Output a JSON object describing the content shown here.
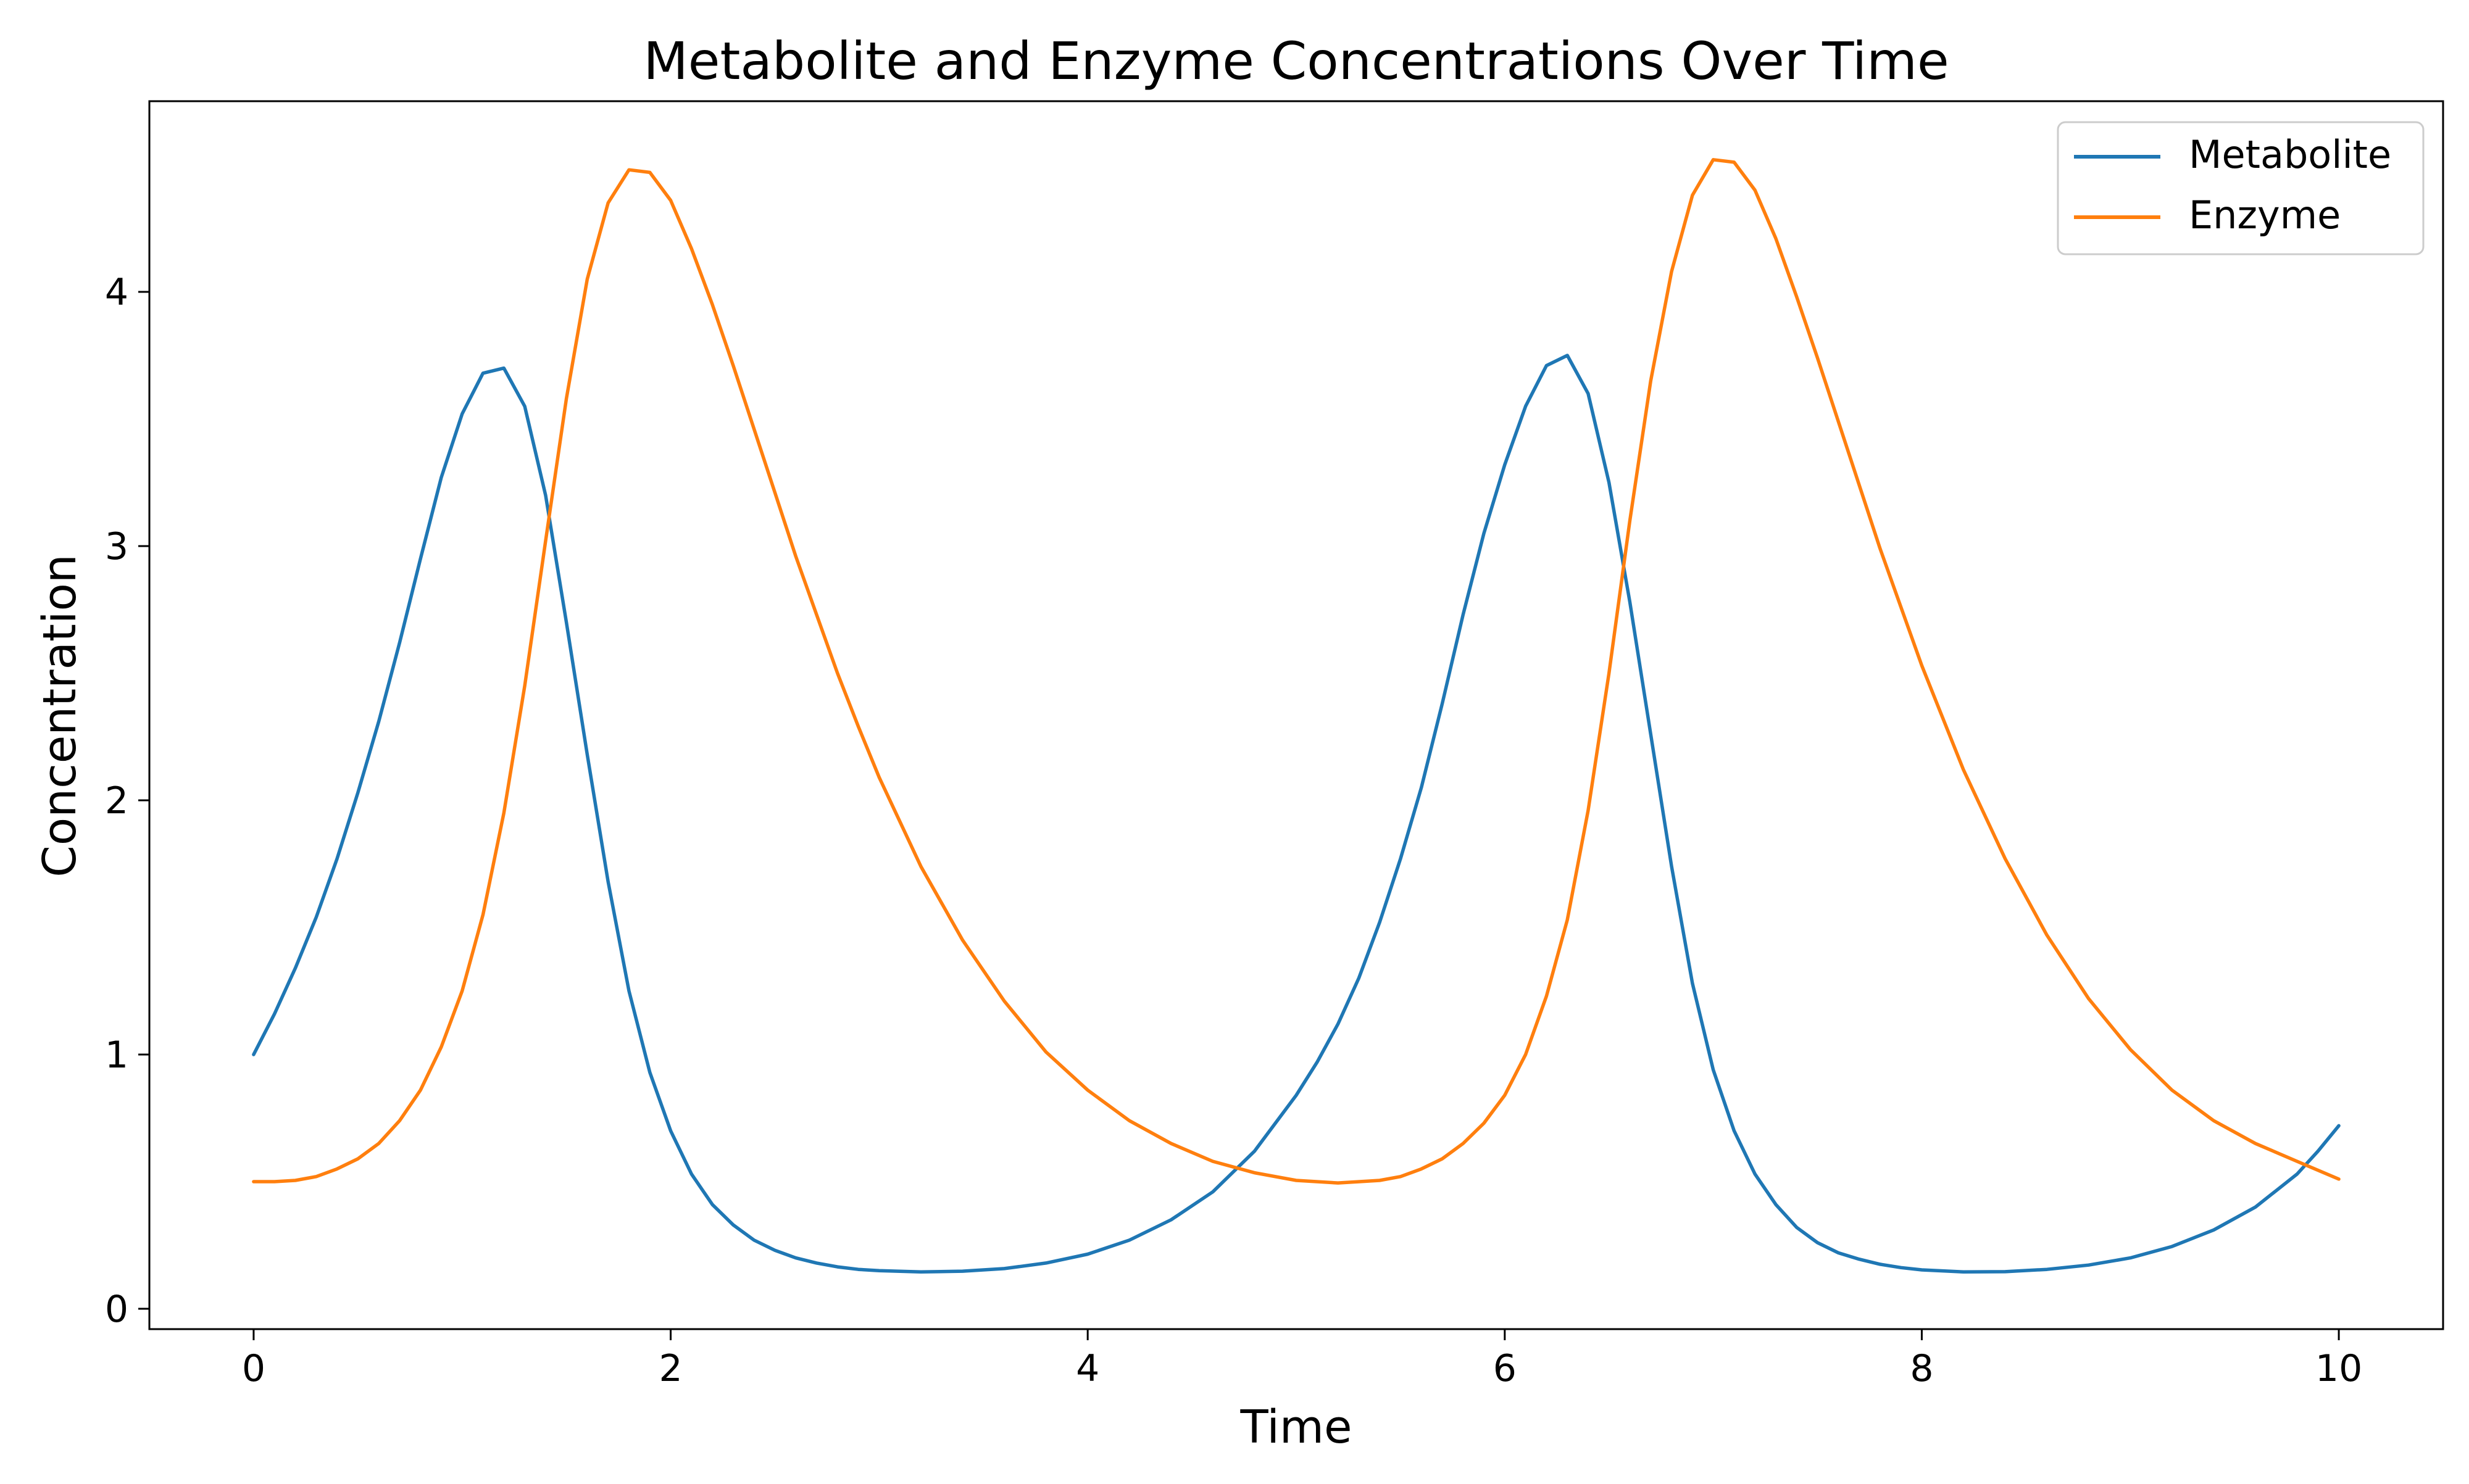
{
  "chart_data": {
    "type": "line",
    "title": "Metabolite and Enzyme Concentrations Over Time",
    "xlabel": "Time",
    "ylabel": "Concentration",
    "xlim": [
      -0.5,
      10.5
    ],
    "ylim": [
      -0.08,
      4.75
    ],
    "grid": false,
    "legend_position": "top-right",
    "x_ticks": [
      0,
      2,
      4,
      6,
      8,
      10
    ],
    "y_ticks": [
      0,
      1,
      2,
      3,
      4
    ],
    "series": [
      {
        "name": "Metabolite",
        "color": "#1f77b4",
        "points": [
          [
            0,
            1.0
          ],
          [
            0.1,
            1.16
          ],
          [
            0.2,
            1.34
          ],
          [
            0.3,
            1.54
          ],
          [
            0.4,
            1.77
          ],
          [
            0.5,
            2.03
          ],
          [
            0.6,
            2.31
          ],
          [
            0.7,
            2.62
          ],
          [
            0.8,
            2.95
          ],
          [
            0.9,
            3.27
          ],
          [
            1.0,
            3.52
          ],
          [
            1.1,
            3.68
          ],
          [
            1.2,
            3.7
          ],
          [
            1.3,
            3.55
          ],
          [
            1.4,
            3.2
          ],
          [
            1.5,
            2.7
          ],
          [
            1.6,
            2.18
          ],
          [
            1.7,
            1.68
          ],
          [
            1.8,
            1.25
          ],
          [
            1.9,
            0.93
          ],
          [
            2.0,
            0.7
          ],
          [
            2.1,
            0.53
          ],
          [
            2.2,
            0.41
          ],
          [
            2.3,
            0.33
          ],
          [
            2.4,
            0.27
          ],
          [
            2.5,
            0.23
          ],
          [
            2.6,
            0.2
          ],
          [
            2.7,
            0.18
          ],
          [
            2.8,
            0.165
          ],
          [
            2.9,
            0.155
          ],
          [
            3.0,
            0.15
          ],
          [
            3.2,
            0.145
          ],
          [
            3.4,
            0.148
          ],
          [
            3.6,
            0.158
          ],
          [
            3.8,
            0.18
          ],
          [
            4.0,
            0.215
          ],
          [
            4.2,
            0.27
          ],
          [
            4.4,
            0.35
          ],
          [
            4.6,
            0.46
          ],
          [
            4.8,
            0.62
          ],
          [
            5.0,
            0.84
          ],
          [
            5.1,
            0.97
          ],
          [
            5.2,
            1.12
          ],
          [
            5.3,
            1.3
          ],
          [
            5.4,
            1.52
          ],
          [
            5.5,
            1.77
          ],
          [
            5.6,
            2.05
          ],
          [
            5.7,
            2.38
          ],
          [
            5.8,
            2.73
          ],
          [
            5.9,
            3.05
          ],
          [
            6.0,
            3.32
          ],
          [
            6.1,
            3.55
          ],
          [
            6.2,
            3.71
          ],
          [
            6.3,
            3.75
          ],
          [
            6.4,
            3.6
          ],
          [
            6.5,
            3.25
          ],
          [
            6.6,
            2.78
          ],
          [
            6.7,
            2.26
          ],
          [
            6.8,
            1.74
          ],
          [
            6.9,
            1.28
          ],
          [
            7.0,
            0.94
          ],
          [
            7.1,
            0.7
          ],
          [
            7.2,
            0.53
          ],
          [
            7.3,
            0.41
          ],
          [
            7.4,
            0.32
          ],
          [
            7.5,
            0.26
          ],
          [
            7.6,
            0.22
          ],
          [
            7.7,
            0.195
          ],
          [
            7.8,
            0.175
          ],
          [
            7.9,
            0.162
          ],
          [
            8.0,
            0.153
          ],
          [
            8.2,
            0.145
          ],
          [
            8.4,
            0.146
          ],
          [
            8.6,
            0.155
          ],
          [
            8.8,
            0.172
          ],
          [
            9.0,
            0.2
          ],
          [
            9.2,
            0.245
          ],
          [
            9.4,
            0.31
          ],
          [
            9.6,
            0.4
          ],
          [
            9.8,
            0.53
          ],
          [
            9.9,
            0.62
          ],
          [
            10.0,
            0.72
          ]
        ]
      },
      {
        "name": "Enzyme",
        "color": "#ff7f0e",
        "points": [
          [
            0,
            0.5
          ],
          [
            0.1,
            0.5
          ],
          [
            0.2,
            0.505
          ],
          [
            0.3,
            0.52
          ],
          [
            0.4,
            0.55
          ],
          [
            0.5,
            0.59
          ],
          [
            0.6,
            0.65
          ],
          [
            0.7,
            0.74
          ],
          [
            0.8,
            0.86
          ],
          [
            0.9,
            1.03
          ],
          [
            1.0,
            1.25
          ],
          [
            1.1,
            1.55
          ],
          [
            1.2,
            1.95
          ],
          [
            1.3,
            2.45
          ],
          [
            1.4,
            3.02
          ],
          [
            1.5,
            3.58
          ],
          [
            1.6,
            4.05
          ],
          [
            1.7,
            4.35
          ],
          [
            1.8,
            4.48
          ],
          [
            1.9,
            4.47
          ],
          [
            2.0,
            4.36
          ],
          [
            2.1,
            4.17
          ],
          [
            2.2,
            3.95
          ],
          [
            2.3,
            3.71
          ],
          [
            2.4,
            3.46
          ],
          [
            2.5,
            3.21
          ],
          [
            2.6,
            2.96
          ],
          [
            2.7,
            2.73
          ],
          [
            2.8,
            2.5
          ],
          [
            2.9,
            2.29
          ],
          [
            3.0,
            2.09
          ],
          [
            3.2,
            1.74
          ],
          [
            3.4,
            1.45
          ],
          [
            3.6,
            1.21
          ],
          [
            3.8,
            1.01
          ],
          [
            4.0,
            0.86
          ],
          [
            4.2,
            0.74
          ],
          [
            4.4,
            0.65
          ],
          [
            4.6,
            0.58
          ],
          [
            4.8,
            0.535
          ],
          [
            5.0,
            0.505
          ],
          [
            5.2,
            0.495
          ],
          [
            5.4,
            0.505
          ],
          [
            5.5,
            0.52
          ],
          [
            5.6,
            0.55
          ],
          [
            5.7,
            0.59
          ],
          [
            5.8,
            0.65
          ],
          [
            5.9,
            0.73
          ],
          [
            6.0,
            0.84
          ],
          [
            6.1,
            1.0
          ],
          [
            6.2,
            1.23
          ],
          [
            6.3,
            1.53
          ],
          [
            6.4,
            1.96
          ],
          [
            6.5,
            2.5
          ],
          [
            6.6,
            3.1
          ],
          [
            6.7,
            3.65
          ],
          [
            6.8,
            4.08
          ],
          [
            6.9,
            4.38
          ],
          [
            7.0,
            4.52
          ],
          [
            7.1,
            4.51
          ],
          [
            7.2,
            4.4
          ],
          [
            7.3,
            4.21
          ],
          [
            7.4,
            3.98
          ],
          [
            7.5,
            3.74
          ],
          [
            7.6,
            3.49
          ],
          [
            7.7,
            3.24
          ],
          [
            7.8,
            2.99
          ],
          [
            7.9,
            2.76
          ],
          [
            8.0,
            2.53
          ],
          [
            8.2,
            2.12
          ],
          [
            8.4,
            1.77
          ],
          [
            8.6,
            1.47
          ],
          [
            8.8,
            1.22
          ],
          [
            9.0,
            1.02
          ],
          [
            9.2,
            0.86
          ],
          [
            9.4,
            0.74
          ],
          [
            9.6,
            0.65
          ],
          [
            9.8,
            0.58
          ],
          [
            10.0,
            0.51
          ]
        ]
      }
    ]
  }
}
